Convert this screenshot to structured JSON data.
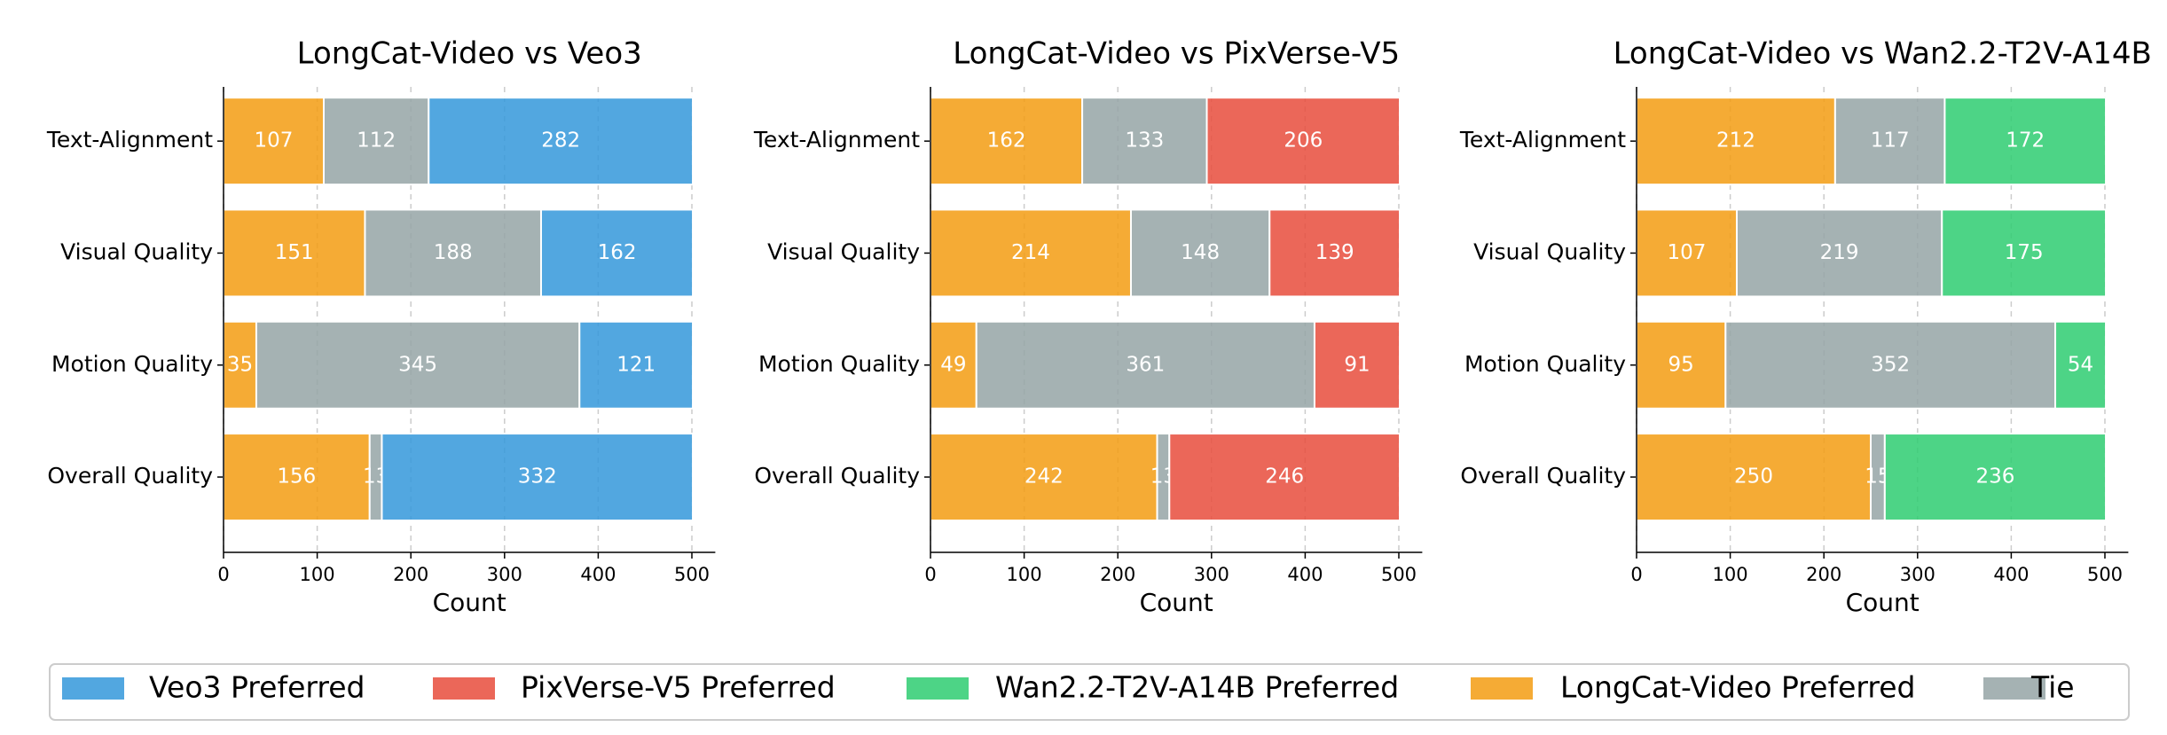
{
  "chart_data": [
    {
      "type": "barh_stacked",
      "title": "LongCat-Video vs Veo3",
      "xlabel": "Count",
      "categories": [
        "Text-Alignment",
        "Visual Quality",
        "Motion Quality",
        "Overall Quality"
      ],
      "series": [
        {
          "name": "LongCat-Video Preferred",
          "color": "#f39c12",
          "values": [
            107,
            151,
            35,
            156
          ]
        },
        {
          "name": "Tie",
          "color": "#95a5a6",
          "values": [
            112,
            188,
            345,
            13
          ]
        },
        {
          "name": "Veo3 Preferred",
          "color": "#3498db",
          "values": [
            282,
            162,
            121,
            332
          ]
        }
      ],
      "xlim": [
        0,
        525
      ],
      "xticks": [
        0,
        100,
        200,
        300,
        400,
        500
      ],
      "grid": true
    },
    {
      "type": "barh_stacked",
      "title": "LongCat-Video vs PixVerse-V5",
      "xlabel": "Count",
      "categories": [
        "Text-Alignment",
        "Visual Quality",
        "Motion Quality",
        "Overall Quality"
      ],
      "series": [
        {
          "name": "LongCat-Video Preferred",
          "color": "#f39c12",
          "values": [
            162,
            214,
            49,
            242
          ]
        },
        {
          "name": "Tie",
          "color": "#95a5a6",
          "values": [
            133,
            148,
            361,
            13
          ]
        },
        {
          "name": "PixVerse-V5 Preferred",
          "color": "#e74c3c",
          "values": [
            206,
            139,
            91,
            246
          ]
        }
      ],
      "xlim": [
        0,
        525
      ],
      "xticks": [
        0,
        100,
        200,
        300,
        400,
        500
      ],
      "grid": true
    },
    {
      "type": "barh_stacked",
      "title": "LongCat-Video vs Wan2.2-T2V-A14B",
      "xlabel": "Count",
      "categories": [
        "Text-Alignment",
        "Visual Quality",
        "Motion Quality",
        "Overall Quality"
      ],
      "series": [
        {
          "name": "LongCat-Video Preferred",
          "color": "#f39c12",
          "values": [
            212,
            107,
            95,
            250
          ]
        },
        {
          "name": "Tie",
          "color": "#95a5a6",
          "values": [
            117,
            219,
            352,
            15
          ]
        },
        {
          "name": "Wan2.2-T2V-A14B Preferred",
          "color": "#2ecc71",
          "values": [
            172,
            175,
            54,
            236
          ]
        }
      ],
      "xlim": [
        0,
        525
      ],
      "xticks": [
        0,
        100,
        200,
        300,
        400,
        500
      ],
      "grid": true
    }
  ]
}
